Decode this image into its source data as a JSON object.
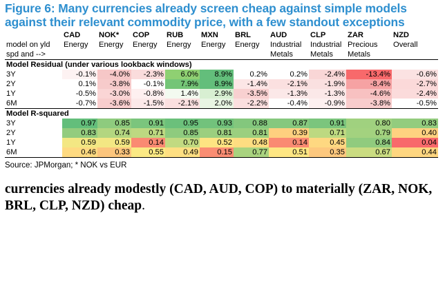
{
  "title": "Figure 6: Many currencies already screen cheap against simple models against their relevant commodity price, with a few standout exceptions",
  "currencies": [
    "CAD",
    "NOK*",
    "COP",
    "RUB",
    "MXN",
    "BRL",
    "AUD",
    "CLP",
    "ZAR",
    "NZD"
  ],
  "row_label_1": "model on yld",
  "row_label_2": "spd and -->",
  "commodity_line1": [
    "Energy",
    "Energy",
    "Energy",
    "Energy",
    "Energy",
    "Energy",
    "Industrial",
    "Industrial",
    "Precious",
    "Overall"
  ],
  "commodity_line2": [
    "",
    "",
    "",
    "",
    "",
    "",
    "Metals",
    "Metals",
    "Metals",
    ""
  ],
  "residual_header": "Model Residual (under various lookback windows)",
  "residual_rows": [
    {
      "label": "3Y",
      "values": [
        "-0.1%",
        "-4.0%",
        "-2.3%",
        "6.0%",
        "8.9%",
        "0.2%",
        "0.2%",
        "-2.4%",
        "-13.4%",
        "-0.6%"
      ],
      "colors": [
        "#fdf2f2",
        "#f6c7c7",
        "#fadcdc",
        "#8fd072",
        "#63be7b",
        "#ffffff",
        "#ffffff",
        "#f9d6d6",
        "#f8696b",
        "#fbe2e2"
      ]
    },
    {
      "label": "2Y",
      "values": [
        "0.1%",
        "-3.8%",
        "-0.1%",
        "7.9%",
        "8.9%",
        "-1.4%",
        "-2.1%",
        "-1.9%",
        "-8.4%",
        "-2.7%"
      ],
      "colors": [
        "#ffffff",
        "#f7cbcb",
        "#ffffff",
        "#74c577",
        "#63be7b",
        "#fce6e6",
        "#fbe0e0",
        "#fae0e0",
        "#f6a2a3",
        "#fbd9d9"
      ]
    },
    {
      "label": "1Y",
      "values": [
        "-0.5%",
        "-3.0%",
        "-0.8%",
        "1.4%",
        "2.9%",
        "-3.5%",
        "-1.3%",
        "-1.3%",
        "-4.6%",
        "-2.4%"
      ],
      "colors": [
        "#ffffff",
        "#fad5d5",
        "#fef0f0",
        "#f3faf0",
        "#d8efd2",
        "#f8d0d0",
        "#fbe8e8",
        "#fbe8e8",
        "#f8c1c1",
        "#fbdbdb"
      ]
    },
    {
      "label": "6M",
      "values": [
        "-0.7%",
        "-3.6%",
        "-1.5%",
        "-2.1%",
        "2.0%",
        "-2.2%",
        "-0.4%",
        "-0.9%",
        "-3.8%",
        "-0.5%"
      ],
      "colors": [
        "#ffffff",
        "#f8cdcd",
        "#fce9e9",
        "#fbe0e0",
        "#e8f5e3",
        "#fbdfdf",
        "#ffffff",
        "#fdf0f0",
        "#f8cccc",
        "#ffffff"
      ]
    }
  ],
  "rsq_header": "Model R-squared",
  "rsq_rows": [
    {
      "label": "3Y",
      "values": [
        "0.97",
        "0.85",
        "0.91",
        "0.95",
        "0.93",
        "0.88",
        "0.87",
        "0.91",
        "0.80",
        "0.83"
      ],
      "colors": [
        "#63be7b",
        "#8ecb7e",
        "#7bc57d",
        "#6bc07b",
        "#72c27c",
        "#83c77d",
        "#86c87e",
        "#7bc57d",
        "#a0d17f",
        "#93cc7e"
      ]
    },
    {
      "label": "2Y",
      "values": [
        "0.83",
        "0.74",
        "0.71",
        "0.85",
        "0.81",
        "0.81",
        "0.39",
        "0.71",
        "0.79",
        "0.40"
      ],
      "colors": [
        "#93cc7e",
        "#b3d680",
        "#bdd981",
        "#8ecb7e",
        "#9bcf7f",
        "#9bcf7f",
        "#fed07f",
        "#bdd981",
        "#a3d27f",
        "#fed280"
      ]
    },
    {
      "label": "1Y",
      "values": [
        "0.59",
        "0.59",
        "0.14",
        "0.70",
        "0.52",
        "0.48",
        "0.14",
        "0.45",
        "0.84",
        "0.04"
      ],
      "colors": [
        "#f3e783",
        "#f3e783",
        "#fa8a72",
        "#c1da81",
        "#fee482",
        "#fedd81",
        "#fa8a72",
        "#fed881",
        "#90cb7e",
        "#f8696b"
      ]
    },
    {
      "label": "6M",
      "values": [
        "0.46",
        "0.33",
        "0.55",
        "0.49",
        "0.15",
        "0.77",
        "0.51",
        "0.35",
        "0.67",
        "0.44"
      ],
      "colors": [
        "#feda81",
        "#fcc57d",
        "#fbe984",
        "#fedf82",
        "#fa8d73",
        "#a9d37f",
        "#fee683",
        "#fdc87e",
        "#cadc81",
        "#fed680"
      ]
    }
  ],
  "source": "Source: JPMorgan; * NOK vs EUR",
  "body_text": "currencies already modestly (CAD, AUD, COP) to materially (ZAR, NOK, BRL, CLP, NZD) cheap",
  "body_end": "."
}
